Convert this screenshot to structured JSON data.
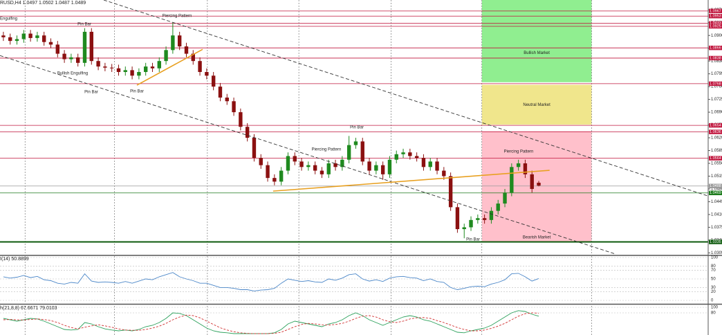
{
  "chart_data": [
    {
      "type": "candlestick",
      "title": "RUSD,H4 1.0497 1.0502 1.0487 1.0489",
      "up_color": "#1f8a1f",
      "down_color": "#8b1010",
      "open": [
        1.09,
        1.0895,
        1.0885,
        1.089,
        1.0905,
        1.0893,
        1.09,
        1.0882,
        1.0875,
        1.085,
        1.0835,
        1.084,
        1.0825,
        1.091,
        1.083,
        1.0815,
        1.0812,
        1.081,
        1.08,
        1.0805,
        1.079,
        1.08,
        1.0815,
        1.081,
        1.083,
        1.086,
        1.09,
        1.087,
        1.085,
        1.083,
        1.08,
        1.079,
        1.076,
        1.073,
        1.072,
        1.069,
        1.065,
        1.062,
        1.0565,
        1.0545,
        1.051,
        1.05,
        1.053,
        1.057,
        1.0555,
        1.054,
        1.0545,
        1.053,
        1.052,
        1.055,
        1.054,
        1.056,
        1.06,
        1.061,
        1.0555,
        1.053,
        1.0545,
        1.052,
        1.056,
        1.0575,
        1.058,
        1.057,
        1.0565,
        1.054,
        1.0555,
        1.053,
        1.0515,
        1.043,
        1.037,
        1.0375,
        1.0395,
        1.04,
        1.0395,
        1.042,
        1.044,
        1.047,
        1.054,
        1.055,
        1.052,
        1.0497
      ],
      "high": [
        1.091,
        1.0905,
        1.09,
        1.0915,
        1.0915,
        1.091,
        1.091,
        1.0892,
        1.0885,
        1.086,
        1.085,
        1.085,
        1.092,
        1.092,
        1.084,
        1.0825,
        1.0822,
        1.082,
        1.0815,
        1.0815,
        1.081,
        1.0825,
        1.0825,
        1.084,
        1.087,
        1.0935,
        1.091,
        1.088,
        1.086,
        1.084,
        1.081,
        1.08,
        1.077,
        1.074,
        1.073,
        1.07,
        1.066,
        1.063,
        1.0575,
        1.0555,
        1.052,
        1.054,
        1.058,
        1.058,
        1.0565,
        1.0555,
        1.0555,
        1.054,
        1.056,
        1.056,
        1.057,
        1.0625,
        1.062,
        1.062,
        1.0565,
        1.0555,
        1.0555,
        1.057,
        1.0585,
        1.059,
        1.059,
        1.058,
        1.0575,
        1.0565,
        1.0565,
        1.054,
        1.0525,
        1.044,
        1.0385,
        1.0405,
        1.041,
        1.041,
        1.043,
        1.045,
        1.048,
        1.055,
        1.056,
        1.056,
        1.053,
        1.0502
      ],
      "low": [
        1.0885,
        1.0875,
        1.0875,
        1.088,
        1.0883,
        1.0883,
        1.0872,
        1.0865,
        1.084,
        1.0825,
        1.0825,
        1.0815,
        1.0815,
        1.082,
        1.0805,
        1.0802,
        1.08,
        1.079,
        1.079,
        1.078,
        1.078,
        1.079,
        1.08,
        1.08,
        1.082,
        1.085,
        1.086,
        1.084,
        1.082,
        1.079,
        1.078,
        1.075,
        1.072,
        1.071,
        1.068,
        1.064,
        1.061,
        1.0555,
        1.0535,
        1.05,
        1.049,
        1.049,
        1.052,
        1.0545,
        1.053,
        1.053,
        1.052,
        1.051,
        1.051,
        1.053,
        1.053,
        1.055,
        1.059,
        1.0545,
        1.052,
        1.052,
        1.0505,
        1.051,
        1.055,
        1.0565,
        1.056,
        1.0555,
        1.053,
        1.053,
        1.052,
        1.0505,
        1.042,
        1.036,
        1.0345,
        1.0365,
        1.0385,
        1.0385,
        1.0385,
        1.041,
        1.043,
        1.046,
        1.053,
        1.051,
        1.047,
        1.0487
      ],
      "close": [
        1.0895,
        1.0885,
        1.089,
        1.0905,
        1.0893,
        1.09,
        1.0882,
        1.0875,
        1.085,
        1.0835,
        1.084,
        1.0825,
        1.091,
        1.083,
        1.0815,
        1.0812,
        1.081,
        1.08,
        1.0805,
        1.079,
        1.08,
        1.0815,
        1.081,
        1.083,
        1.086,
        1.09,
        1.087,
        1.085,
        1.083,
        1.08,
        1.079,
        1.076,
        1.073,
        1.072,
        1.069,
        1.065,
        1.062,
        1.0565,
        1.0545,
        1.051,
        1.05,
        1.053,
        1.057,
        1.0555,
        1.054,
        1.0545,
        1.053,
        1.052,
        1.055,
        1.054,
        1.056,
        1.06,
        1.061,
        1.0555,
        1.053,
        1.0545,
        1.052,
        1.056,
        1.0575,
        1.058,
        1.057,
        1.0565,
        1.054,
        1.0555,
        1.053,
        1.0515,
        1.043,
        1.037,
        1.0375,
        1.0395,
        1.04,
        1.0395,
        1.042,
        1.044,
        1.047,
        1.054,
        1.055,
        1.052,
        1.048,
        1.0489
      ],
      "xlim": [
        -0.5,
        104
      ],
      "ylim": [
        1.03,
        1.0997
      ],
      "yticks": [
        {
          "value": 1.097,
          "label": "1.0970"
        },
        1.0935,
        {
          "value": 1.09,
          "label": "1.0900"
        },
        1.0865,
        {
          "value": 1.083,
          "label": "1.0830"
        },
        1.0795,
        {
          "value": 1.076,
          "label": "1.0760"
        },
        1.0725,
        {
          "value": 1.069,
          "label": "1.0690"
        },
        1.0655,
        {
          "value": 1.062,
          "label": "1.0620"
        },
        1.0585,
        {
          "value": 1.055,
          "label": "1.0550"
        },
        1.0515,
        {
          "value": 1.048,
          "label": "1.0480"
        },
        1.0445,
        {
          "value": 1.041,
          "label": "1.0410"
        },
        1.0375,
        {
          "value": 1.034,
          "label": "1.0340"
        },
        1.0305
      ],
      "xgrid": [
        3.2,
        16.4,
        30.1,
        43.6,
        57.2,
        70.6,
        86.8
      ],
      "zones": [
        {
          "name": "Bullish Market",
          "color": "#90ee90",
          "ylim": [
            1.0772,
            1.0997
          ],
          "xlim": [
            70.6,
            86.8
          ]
        },
        {
          "name": "Neutral Market",
          "color": "#f0e68c",
          "ylim": [
            1.0656,
            1.0765
          ],
          "xlim": [
            70.6,
            86.8
          ]
        },
        {
          "name": "Bearish Market",
          "color": "#ffc0cb",
          "ylim": [
            1.0335,
            1.0638
          ],
          "xlim": [
            70.6,
            86.8
          ]
        }
      ],
      "levels": [
        {
          "value": 1.0967,
          "color": "#c0143c"
        },
        {
          "value": 1.0953,
          "color": "#c0143c"
        },
        {
          "value": 1.0933,
          "color": "#c0143c"
        },
        {
          "value": 1.0925,
          "color": "#c0143c"
        },
        {
          "value": 1.0866,
          "color": "#c0143c"
        },
        {
          "value": 1.0838,
          "color": "#c0143c"
        },
        {
          "value": 1.0768,
          "color": "#c0143c"
        },
        {
          "value": 1.0654,
          "color": "#c0143c"
        },
        {
          "value": 1.0636,
          "color": "#c0143c"
        },
        {
          "value": 1.0564,
          "color": "#c0143c"
        },
        {
          "value": 1.0488,
          "color": "#9a9a9a"
        },
        {
          "value": 1.0469,
          "color": "#1a7a1a"
        },
        {
          "value": 1.0335,
          "color": "#0d5a0d",
          "width": 2
        }
      ],
      "trendlines": [
        {
          "points": [
            [
              14.8,
              1.0997
            ],
            [
              104.6,
              1.0457
            ]
          ],
          "color": "#333333",
          "dash": true
        },
        {
          "points": [
            [
              -0.5,
              1.0845
            ],
            [
              90.3,
              1.0302
            ]
          ],
          "color": "#333333",
          "dash": true
        },
        {
          "points": [
            [
              19.7,
              1.0764
            ],
            [
              29.4,
              1.0862
            ]
          ],
          "color": "#e8a020",
          "dash": false
        },
        {
          "points": [
            [
              39.8,
              1.0474
            ],
            [
              80.6,
              1.0531
            ]
          ],
          "color": "#e8a020",
          "dash": false
        }
      ],
      "annotations": [
        "Engulfing",
        "Pin Bar",
        "Piercing Pattern",
        "Bullish Engulfing",
        "Pin Bar",
        "Pin Bar",
        "Piercing Pattern",
        "Pin Bar",
        "Pin Bar",
        "Piercing Pattern"
      ]
    },
    {
      "type": "line",
      "title": "I(14) 50.8899",
      "series": [
        {
          "color": "#4a86c8",
          "values": [
            55,
            52,
            54,
            58,
            53,
            56,
            48,
            46,
            40,
            38,
            42,
            40,
            62,
            45,
            42,
            43,
            42,
            40,
            44,
            40,
            45,
            50,
            48,
            55,
            60,
            65,
            55,
            50,
            46,
            40,
            40,
            35,
            30,
            30,
            28,
            25,
            25,
            22,
            24,
            25,
            28,
            40,
            50,
            47,
            44,
            46,
            43,
            42,
            50,
            47,
            52,
            60,
            62,
            50,
            45,
            48,
            44,
            52,
            55,
            56,
            53,
            52,
            46,
            50,
            44,
            42,
            30,
            25,
            28,
            32,
            33,
            32,
            38,
            42,
            48,
            62,
            63,
            55,
            45,
            51
          ]
        }
      ],
      "xlim": [
        -0.5,
        104
      ],
      "ylim": [
        0,
        100
      ],
      "yticks": [
        100,
        80,
        70,
        50,
        30,
        20,
        0
      ]
    },
    {
      "type": "line",
      "title": "h(21,8,8) 67.6671 79.0103",
      "series": [
        {
          "color": "#2aa05a",
          "dash": false,
          "values": [
            60,
            55,
            50,
            55,
            60,
            58,
            50,
            40,
            30,
            20,
            18,
            20,
            45,
            40,
            30,
            22,
            18,
            15,
            18,
            15,
            20,
            30,
            35,
            45,
            60,
            80,
            78,
            70,
            55,
            40,
            25,
            15,
            10,
            8,
            5,
            5,
            5,
            5,
            5,
            5,
            8,
            20,
            40,
            50,
            45,
            40,
            35,
            30,
            40,
            45,
            55,
            70,
            80,
            70,
            55,
            45,
            35,
            45,
            55,
            65,
            70,
            65,
            55,
            50,
            40,
            30,
            20,
            10,
            8,
            15,
            20,
            25,
            35,
            50,
            65,
            80,
            88,
            85,
            75,
            68
          ]
        },
        {
          "color": "#d03030",
          "dash": true,
          "values": [
            55,
            56,
            55,
            54,
            56,
            58,
            56,
            52,
            45,
            35,
            27,
            22,
            28,
            33,
            37,
            33,
            28,
            22,
            18,
            17,
            17,
            20,
            25,
            32,
            42,
            55,
            65,
            72,
            70,
            62,
            50,
            38,
            26,
            18,
            12,
            8,
            6,
            5,
            5,
            5,
            6,
            10,
            20,
            30,
            38,
            42,
            40,
            37,
            36,
            38,
            42,
            50,
            60,
            68,
            70,
            65,
            55,
            48,
            45,
            50,
            58,
            62,
            63,
            60,
            52,
            45,
            36,
            27,
            20,
            15,
            15,
            18,
            24,
            32,
            42,
            55,
            68,
            77,
            80,
            79
          ]
        }
      ],
      "xlim": [
        -0.5,
        104
      ],
      "ylim": [
        0,
        100
      ],
      "yticks": [
        100,
        80
      ]
    }
  ]
}
